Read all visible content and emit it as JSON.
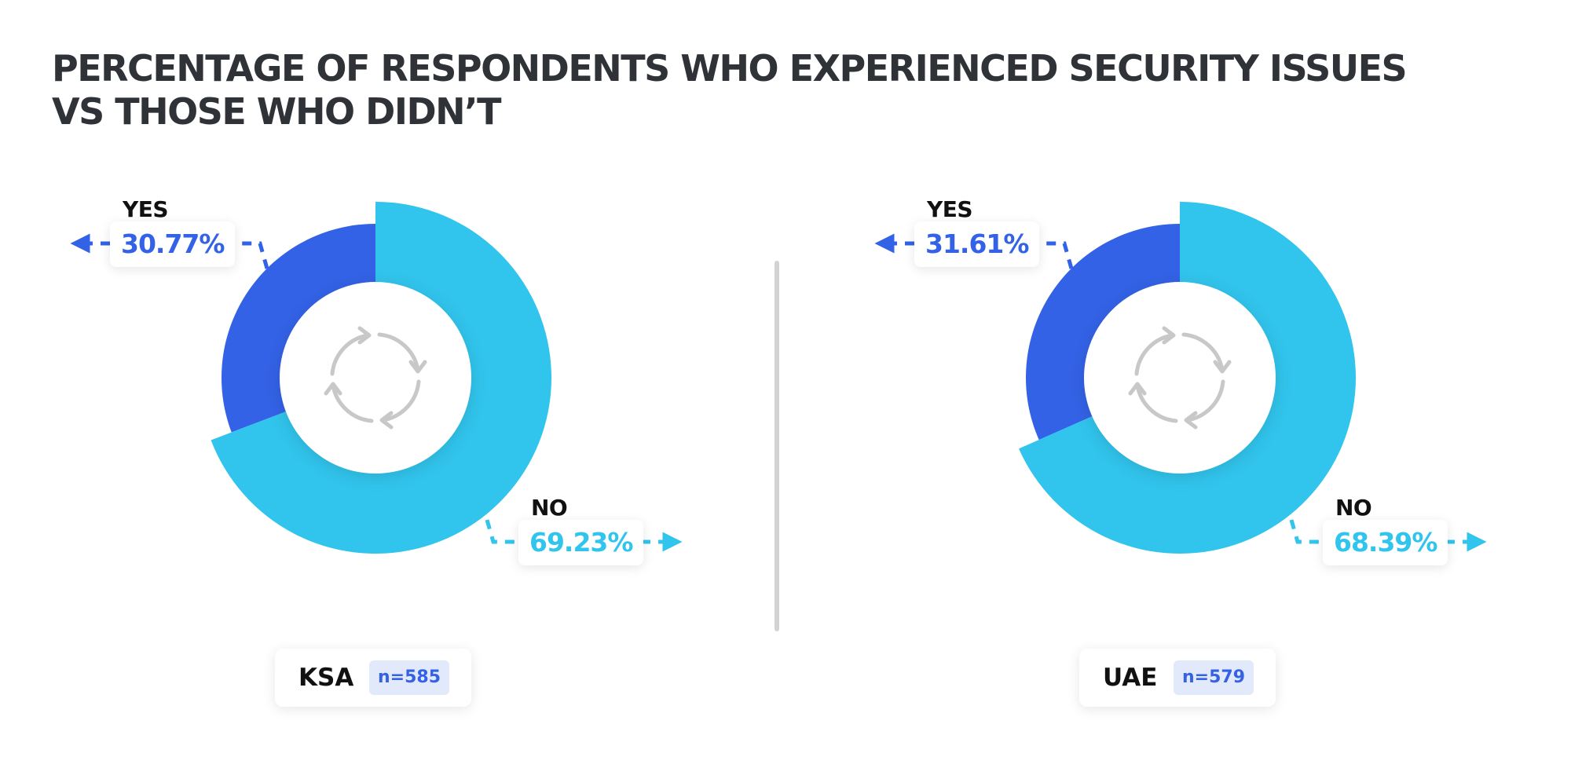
{
  "title": {
    "line1": "PERCENTAGE OF RESPONDENTS WHO EXPERIENCED SECURITY ISSUES",
    "line2": "VS THOSE WHO DIDN’T"
  },
  "colors": {
    "yes": "#3362e6",
    "no": "#31c4ec",
    "icon": "#c8c8c8",
    "divider": "#d3d3d3"
  },
  "center_icon": "refresh-cycle-icon",
  "chart_data": [
    {
      "type": "pie",
      "donut": true,
      "region": "KSA",
      "sample": "n=585",
      "slices": [
        {
          "label": "YES",
          "value": 30.77,
          "display": "30.77%"
        },
        {
          "label": "NO",
          "value": 69.23,
          "display": "69.23%"
        }
      ]
    },
    {
      "type": "pie",
      "donut": true,
      "region": "UAE",
      "sample": "n=579",
      "slices": [
        {
          "label": "YES",
          "value": 31.61,
          "display": "31.61%"
        },
        {
          "label": "NO",
          "value": 68.39,
          "display": "68.39%"
        }
      ]
    }
  ]
}
